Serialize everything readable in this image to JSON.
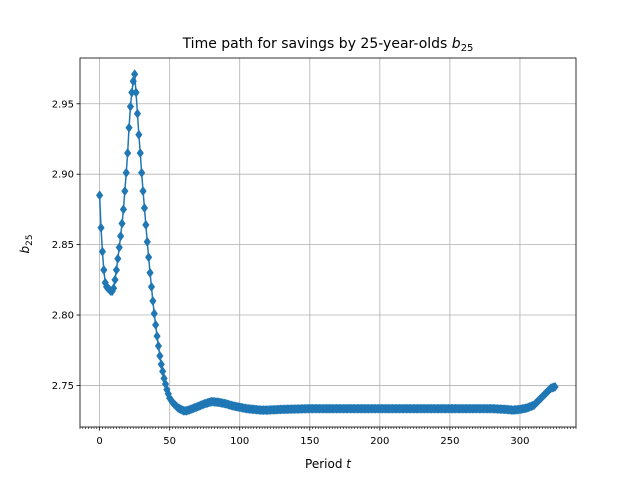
{
  "chart_data": {
    "type": "line",
    "title": {
      "main": "Time path for savings by 25-year-olds ",
      "var": "b",
      "sub": "25"
    },
    "xlabel": {
      "text": "Period ",
      "var": "t"
    },
    "ylabel": {
      "var": "b",
      "sub": "25"
    },
    "xlim": [
      -14,
      340
    ],
    "ylim": [
      2.7205,
      2.9825
    ],
    "xticks": [
      0,
      50,
      100,
      150,
      200,
      250,
      300
    ],
    "xtick_labels": [
      "0",
      "50",
      "100",
      "150",
      "200",
      "250",
      "300"
    ],
    "yticks": [
      2.75,
      2.8,
      2.85,
      2.9,
      2.95
    ],
    "ytick_labels": [
      "2.75",
      "2.80",
      "2.85",
      "2.90",
      "2.95"
    ],
    "grid": true,
    "marker": "diamond",
    "color": "#1f77b4",
    "anchors": [
      [
        0,
        2.885
      ],
      [
        1,
        2.862
      ],
      [
        2,
        2.845
      ],
      [
        3,
        2.832
      ],
      [
        4,
        2.823
      ],
      [
        5,
        2.82
      ],
      [
        6,
        2.819
      ],
      [
        7,
        2.818
      ],
      [
        8,
        2.817
      ],
      [
        9,
        2.817
      ],
      [
        10,
        2.819
      ],
      [
        11,
        2.825
      ],
      [
        12,
        2.832
      ],
      [
        13,
        2.84
      ],
      [
        14,
        2.848
      ],
      [
        15,
        2.856
      ],
      [
        16,
        2.865
      ],
      [
        17,
        2.875
      ],
      [
        18,
        2.888
      ],
      [
        19,
        2.901
      ],
      [
        20,
        2.915
      ],
      [
        21,
        2.933
      ],
      [
        22,
        2.948
      ],
      [
        23,
        2.958
      ],
      [
        24,
        2.966
      ],
      [
        25,
        2.971
      ],
      [
        26,
        2.958
      ],
      [
        27,
        2.943
      ],
      [
        28,
        2.928
      ],
      [
        29,
        2.915
      ],
      [
        30,
        2.901
      ],
      [
        31,
        2.888
      ],
      [
        32,
        2.876
      ],
      [
        33,
        2.864
      ],
      [
        34,
        2.852
      ],
      [
        35,
        2.841
      ],
      [
        36,
        2.83
      ],
      [
        37,
        2.82
      ],
      [
        38,
        2.81
      ],
      [
        39,
        2.801
      ],
      [
        40,
        2.793
      ],
      [
        41,
        2.785
      ],
      [
        42,
        2.778
      ],
      [
        43,
        2.771
      ],
      [
        44,
        2.765
      ],
      [
        45,
        2.76
      ],
      [
        46,
        2.755
      ],
      [
        47,
        2.751
      ],
      [
        48,
        2.747
      ],
      [
        49,
        2.744
      ],
      [
        50,
        2.741
      ],
      [
        52,
        2.738
      ],
      [
        54,
        2.736
      ],
      [
        56,
        2.734
      ],
      [
        58,
        2.733
      ],
      [
        60,
        2.732
      ],
      [
        62,
        2.732
      ],
      [
        65,
        2.733
      ],
      [
        70,
        2.735
      ],
      [
        75,
        2.737
      ],
      [
        80,
        2.7385
      ],
      [
        85,
        2.738
      ],
      [
        90,
        2.737
      ],
      [
        95,
        2.7355
      ],
      [
        100,
        2.7345
      ],
      [
        105,
        2.7335
      ],
      [
        110,
        2.733
      ],
      [
        115,
        2.7325
      ],
      [
        120,
        2.7325
      ],
      [
        130,
        2.733
      ],
      [
        150,
        2.7335
      ],
      [
        200,
        2.7335
      ],
      [
        250,
        2.7335
      ],
      [
        280,
        2.7335
      ],
      [
        290,
        2.733
      ],
      [
        295,
        2.7325
      ],
      [
        300,
        2.733
      ],
      [
        305,
        2.734
      ],
      [
        310,
        2.736
      ],
      [
        313,
        2.739
      ],
      [
        316,
        2.742
      ],
      [
        319,
        2.745
      ],
      [
        322,
        2.748
      ],
      [
        325,
        2.749
      ]
    ]
  }
}
